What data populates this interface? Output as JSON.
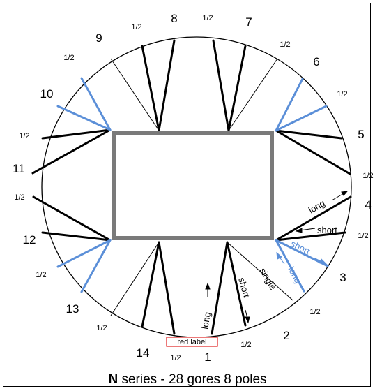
{
  "gore_numbers": [
    "1",
    "2",
    "3",
    "4",
    "5",
    "6",
    "7",
    "8",
    "9",
    "10",
    "11",
    "12",
    "13",
    "14"
  ],
  "half_label": "1/2",
  "labels": {
    "long_right": "long",
    "short_right": "short",
    "short_blue": "short",
    "long_blue": "long",
    "single": "single",
    "short_bottom": "short",
    "long_bottom": "long",
    "red_label": "red label"
  },
  "caption": {
    "series": "N",
    "rest": " series - 28 gores 8 poles"
  },
  "colors": {
    "line": "#000000",
    "blue": "#5b8fd8",
    "rect": "#7a7a7a",
    "red": "#e02020"
  }
}
